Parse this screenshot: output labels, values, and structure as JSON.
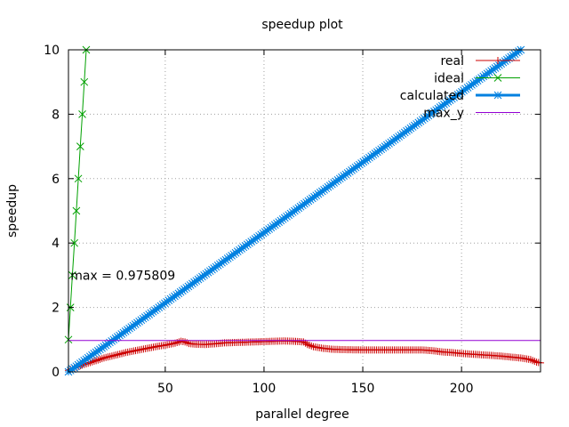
{
  "chart_data": {
    "type": "line",
    "title": "speedup plot",
    "xlabel": "parallel degree",
    "ylabel": "speedup",
    "xlim": [
      1,
      240
    ],
    "ylim": [
      0,
      10
    ],
    "xticks": [
      "50",
      "100",
      "150",
      "200"
    ],
    "xtick_values": [
      50,
      100,
      150,
      200
    ],
    "yticks": [
      "0",
      "2",
      "4",
      "6",
      "8",
      "10"
    ],
    "ytick_values": [
      0,
      2,
      4,
      6,
      8,
      10
    ],
    "grid": true,
    "legend_position": "top-right",
    "annotation": {
      "text": "max = 0.975809",
      "x": 2,
      "y": 3.0
    },
    "series": [
      {
        "name": "real",
        "color": "#cc0000",
        "marker": "plus",
        "points": [
          [
            1,
            0.05
          ],
          [
            5,
            0.15
          ],
          [
            10,
            0.25
          ],
          [
            15,
            0.35
          ],
          [
            20,
            0.45
          ],
          [
            25,
            0.52
          ],
          [
            30,
            0.6
          ],
          [
            35,
            0.66
          ],
          [
            40,
            0.72
          ],
          [
            45,
            0.78
          ],
          [
            50,
            0.83
          ],
          [
            55,
            0.89
          ],
          [
            58,
            0.95
          ],
          [
            60,
            0.93
          ],
          [
            62,
            0.88
          ],
          [
            65,
            0.86
          ],
          [
            70,
            0.85
          ],
          [
            75,
            0.87
          ],
          [
            80,
            0.9
          ],
          [
            85,
            0.91
          ],
          [
            90,
            0.92
          ],
          [
            95,
            0.93
          ],
          [
            100,
            0.94
          ],
          [
            105,
            0.95
          ],
          [
            110,
            0.96
          ],
          [
            115,
            0.95
          ],
          [
            120,
            0.93
          ],
          [
            122,
            0.85
          ],
          [
            125,
            0.78
          ],
          [
            130,
            0.73
          ],
          [
            135,
            0.7
          ],
          [
            140,
            0.69
          ],
          [
            150,
            0.68
          ],
          [
            160,
            0.68
          ],
          [
            170,
            0.68
          ],
          [
            180,
            0.68
          ],
          [
            185,
            0.66
          ],
          [
            190,
            0.62
          ],
          [
            195,
            0.6
          ],
          [
            200,
            0.57
          ],
          [
            205,
            0.55
          ],
          [
            210,
            0.53
          ],
          [
            215,
            0.51
          ],
          [
            220,
            0.49
          ],
          [
            225,
            0.46
          ],
          [
            230,
            0.43
          ],
          [
            235,
            0.38
          ],
          [
            238,
            0.3
          ],
          [
            240,
            0.28
          ]
        ]
      },
      {
        "name": "ideal",
        "color": "#00a000",
        "marker": "x",
        "points": [
          [
            1,
            1
          ],
          [
            2,
            2
          ],
          [
            3,
            3
          ],
          [
            4,
            4
          ],
          [
            5,
            5
          ],
          [
            6,
            6
          ],
          [
            7,
            7
          ],
          [
            8,
            8
          ],
          [
            9,
            9
          ],
          [
            10,
            10
          ]
        ]
      },
      {
        "name": "calculated",
        "color": "#0080e0",
        "marker": "star",
        "points": [
          [
            1,
            0.0
          ],
          [
            230,
            10.0
          ]
        ]
      },
      {
        "name": "max_y",
        "color": "#9400d3",
        "marker": "none",
        "points": [
          [
            1,
            0.975809
          ],
          [
            240,
            0.975809
          ]
        ]
      }
    ]
  }
}
